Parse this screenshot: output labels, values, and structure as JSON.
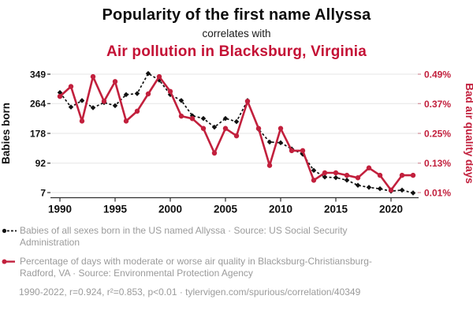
{
  "header": {
    "title": "Popularity of the first name Allyssa",
    "connector": "correlates with",
    "subtitle": "Air pollution in Blacksburg, Virginia"
  },
  "colors": {
    "title_accent": "#c41135",
    "series_babies": "#111111",
    "series_air": "#c2203d",
    "legend_text": "#9b9b9b",
    "gridline": "#e6e6e6",
    "axis_line": "#2e2e2e"
  },
  "chart_data": {
    "type": "line",
    "x": [
      1990,
      1991,
      1992,
      1993,
      1994,
      1995,
      1996,
      1997,
      1998,
      1999,
      2000,
      2001,
      2002,
      2003,
      2004,
      2005,
      2006,
      2007,
      2008,
      2009,
      2010,
      2011,
      2012,
      2013,
      2014,
      2015,
      2016,
      2017,
      2018,
      2019,
      2020,
      2021,
      2022
    ],
    "series": [
      {
        "id": "babies-named-allyssa",
        "name": "Babies of all sexes born in the US named Allyssa",
        "axis": "left",
        "color": "#111111",
        "style": "dashed-diamond",
        "values": [
          296,
          254,
          273,
          252,
          267,
          258,
          290,
          293,
          351,
          332,
          290,
          273,
          229,
          221,
          196,
          221,
          212,
          273,
          190,
          153,
          151,
          133,
          118,
          71,
          52,
          50,
          43,
          28,
          22,
          18,
          11,
          14,
          6
        ]
      },
      {
        "id": "bad-air-quality-days",
        "name": "Percentage of days with moderate or worse air quality in Blacksburg-Christiansburg-Radford, VA",
        "axis": "right",
        "color": "#c2203d",
        "style": "solid-circle",
        "values": [
          0.4,
          0.44,
          0.3,
          0.48,
          0.38,
          0.46,
          0.3,
          0.34,
          0.41,
          0.48,
          0.42,
          0.32,
          0.31,
          0.27,
          0.17,
          0.27,
          0.24,
          0.38,
          0.27,
          0.12,
          0.27,
          0.18,
          0.18,
          0.06,
          0.09,
          0.09,
          0.08,
          0.07,
          0.11,
          0.08,
          0.02,
          0.08,
          0.08
        ]
      }
    ],
    "left_axis": {
      "label": "Babies born",
      "ticks": [
        "349",
        "264",
        "178",
        "92",
        "7"
      ],
      "tick_values": [
        349,
        264,
        178,
        92,
        7
      ],
      "range": [
        7,
        349
      ]
    },
    "right_axis": {
      "label": "Bad air quality days",
      "ticks": [
        "0.49%",
        "0.37%",
        "0.25%",
        "0.13%",
        "0.01%"
      ],
      "tick_values": [
        0.49,
        0.37,
        0.25,
        0.13,
        0.01
      ],
      "range": [
        0.01,
        0.49
      ]
    },
    "x_axis": {
      "ticks": [
        "1990",
        "1995",
        "2000",
        "2005",
        "2010",
        "2015",
        "2020"
      ],
      "tick_values": [
        1990,
        1995,
        2000,
        2005,
        2010,
        2015,
        2020
      ],
      "range": [
        1990,
        2022
      ]
    },
    "grid": "horizontal",
    "legend_position": "bottom"
  },
  "legend": [
    {
      "marker": "black-dot-dashed",
      "label": "Babies of all sexes born in the US named Allyssa · Source: US Social Security Administration"
    },
    {
      "marker": "red-dot-solid",
      "label": "Percentage of days with moderate or worse air quality in Blacksburg-Christiansburg-Radford, VA · Source: Environmental Protection Agency"
    }
  ],
  "footer": {
    "text": "1990-2022, r=0.924, r²=0.853, p<0.01 · tylervigen.com/spurious/correlation/40349"
  }
}
